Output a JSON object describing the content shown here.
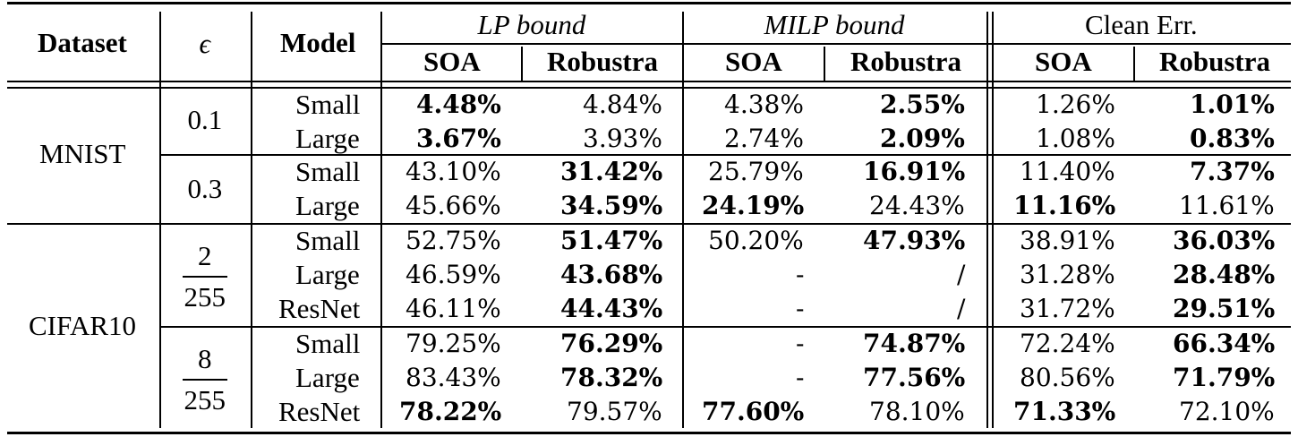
{
  "header": {
    "dataset": "Dataset",
    "epsilon": "ϵ",
    "model": "Model",
    "groups": [
      "LP bound",
      "MILP bound",
      "Clean Err."
    ],
    "sub": [
      "SOA",
      "Robustra",
      "SOA",
      "Robustra",
      "SOA",
      "Robustra"
    ]
  },
  "datasets": [
    "MNIST",
    "CIFAR10"
  ],
  "epsilons": {
    "e1": "0.1",
    "e2": "0.3",
    "e3_num": "2",
    "e3_den": "255",
    "e4_num": "8",
    "e4_den": "255"
  },
  "rows": [
    {
      "model": "Small",
      "cells": [
        {
          "v": "4.48%",
          "b": true
        },
        {
          "v": "4.84%",
          "b": false
        },
        {
          "v": "4.38%",
          "b": false
        },
        {
          "v": "2.55%",
          "b": true
        },
        {
          "v": "1.26%",
          "b": false
        },
        {
          "v": "1.01%",
          "b": true
        }
      ]
    },
    {
      "model": "Large",
      "cells": [
        {
          "v": "3.67%",
          "b": true
        },
        {
          "v": "3.93%",
          "b": false
        },
        {
          "v": "2.74%",
          "b": false
        },
        {
          "v": "2.09%",
          "b": true
        },
        {
          "v": "1.08%",
          "b": false
        },
        {
          "v": "0.83%",
          "b": true
        }
      ]
    },
    {
      "model": "Small",
      "cells": [
        {
          "v": "43.10%",
          "b": false
        },
        {
          "v": "31.42%",
          "b": true
        },
        {
          "v": "25.79%",
          "b": false
        },
        {
          "v": "16.91%",
          "b": true
        },
        {
          "v": "11.40%",
          "b": false
        },
        {
          "v": "7.37%",
          "b": true
        }
      ]
    },
    {
      "model": "Large",
      "cells": [
        {
          "v": "45.66%",
          "b": false
        },
        {
          "v": "34.59%",
          "b": true
        },
        {
          "v": "24.19%",
          "b": true
        },
        {
          "v": "24.43%",
          "b": false
        },
        {
          "v": "11.16%",
          "b": true
        },
        {
          "v": "11.61%",
          "b": false
        }
      ]
    },
    {
      "model": "Small",
      "cells": [
        {
          "v": "52.75%",
          "b": false
        },
        {
          "v": "51.47%",
          "b": true
        },
        {
          "v": "50.20%",
          "b": false
        },
        {
          "v": "47.93%",
          "b": true
        },
        {
          "v": "38.91%",
          "b": false
        },
        {
          "v": "36.03%",
          "b": true
        }
      ]
    },
    {
      "model": "Large",
      "cells": [
        {
          "v": "46.59%",
          "b": false
        },
        {
          "v": "43.68%",
          "b": true
        },
        {
          "v": "-",
          "b": false
        },
        {
          "v": "/",
          "b": false
        },
        {
          "v": "31.28%",
          "b": false
        },
        {
          "v": "28.48%",
          "b": true
        }
      ]
    },
    {
      "model": "ResNet",
      "cells": [
        {
          "v": "46.11%",
          "b": false
        },
        {
          "v": "44.43%",
          "b": true
        },
        {
          "v": "-",
          "b": false
        },
        {
          "v": "/",
          "b": false
        },
        {
          "v": "31.72%",
          "b": false
        },
        {
          "v": "29.51%",
          "b": true
        }
      ]
    },
    {
      "model": "Small",
      "cells": [
        {
          "v": "79.25%",
          "b": false
        },
        {
          "v": "76.29%",
          "b": true
        },
        {
          "v": "-",
          "b": false
        },
        {
          "v": "74.87%",
          "b": true
        },
        {
          "v": "72.24%",
          "b": false
        },
        {
          "v": "66.34%",
          "b": true
        }
      ]
    },
    {
      "model": "Large",
      "cells": [
        {
          "v": "83.43%",
          "b": false
        },
        {
          "v": "78.32%",
          "b": true
        },
        {
          "v": "-",
          "b": false
        },
        {
          "v": "77.56%",
          "b": true
        },
        {
          "v": "80.56%",
          "b": false
        },
        {
          "v": "71.79%",
          "b": true
        }
      ]
    },
    {
      "model": "ResNet",
      "cells": [
        {
          "v": "78.22%",
          "b": true
        },
        {
          "v": "79.57%",
          "b": false
        },
        {
          "v": "77.60%",
          "b": true
        },
        {
          "v": "78.10%",
          "b": false
        },
        {
          "v": "71.33%",
          "b": true
        },
        {
          "v": "72.10%",
          "b": false
        }
      ]
    }
  ]
}
